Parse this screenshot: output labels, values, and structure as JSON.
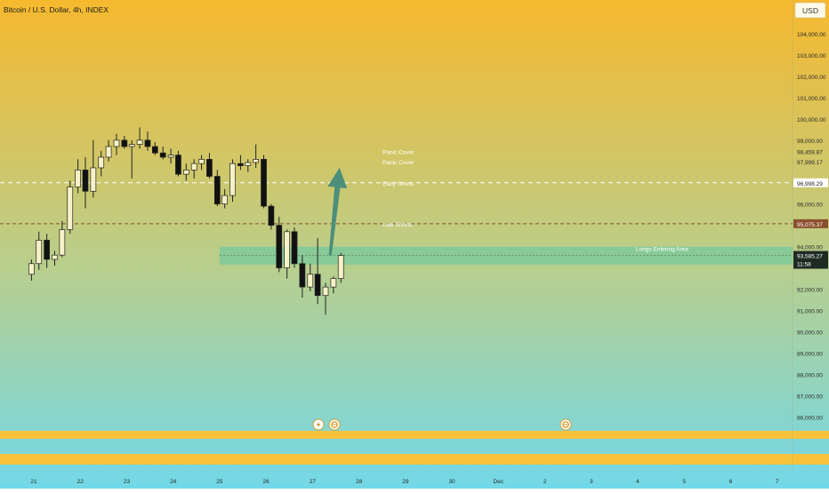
{
  "header": {
    "symbol_title": "Bitcoin / U.S. Dollar, 4h, INDEX",
    "currency_button": "USD"
  },
  "price_axis": {
    "ticks": [
      "104,000.00",
      "103,000.00",
      "102,000.00",
      "101,000.00",
      "100,000.00",
      "99,000.00",
      "96,000.00",
      "94,000.00",
      "92,000.00",
      "91,000.00",
      "90,000.00",
      "89,000.00",
      "88,000.00",
      "87,000.00",
      "86,000.00"
    ],
    "tick_values": [
      104000,
      103000,
      102000,
      101000,
      100000,
      99000,
      96000,
      94000,
      92000,
      91000,
      90000,
      89000,
      88000,
      87000,
      86000
    ]
  },
  "time_axis": {
    "labels": [
      "21",
      "22",
      "23",
      "24",
      "25",
      "26",
      "27",
      "28",
      "29",
      "30",
      "Dec",
      "2",
      "3",
      "4",
      "5",
      "6",
      "7"
    ]
  },
  "price_badges": [
    {
      "label": "98,459.87",
      "value": 98459.87,
      "style": "plain"
    },
    {
      "label": "97,999.17",
      "value": 97999.17,
      "style": "plain"
    },
    {
      "label": "96,998.29",
      "value": 96998.29,
      "style": "white"
    },
    {
      "label": "95,075.37",
      "value": 95075.37,
      "style": "brown"
    },
    {
      "label": "93,585.27",
      "value": 93585.27,
      "style": "dark"
    }
  ],
  "current_price": {
    "price": "93,585.27",
    "countdown": "11:58"
  },
  "levels": [
    {
      "label": "Panic Cover",
      "value": 98459.87,
      "line": "none"
    },
    {
      "label": "Panic Cover",
      "value": 97999.17,
      "line": "none"
    },
    {
      "label": "Early Shorts",
      "value": 96998.29,
      "line": "white-dashed"
    },
    {
      "label": "Late Shorts",
      "value": 95075.37,
      "line": "brown-dashed"
    }
  ],
  "zone": {
    "label": "Longs Entering Area",
    "top": 94000,
    "bottom": 93150,
    "start_day": 25.0
  },
  "arrow": {
    "from_day": 27.38,
    "from_price": 93580,
    "to_day": 27.58,
    "to_price": 97700,
    "color": "#4d8f7a"
  },
  "colors": {
    "bg_top": "#f6b92e",
    "bg_mid": "#b8cf8e",
    "bg_bottom": "#72d8e8",
    "candle_up": "#f7f1c7",
    "candle_down": "#111111",
    "zone": "#7fc99a",
    "brown_line": "#8a4f2c",
    "orange_band": "#f6c23c"
  },
  "chart_data": {
    "type": "candlestick",
    "title": "Bitcoin / U.S. Dollar, 4h, INDEX",
    "x_unit": "day of November",
    "ylim": [
      85200,
      105000
    ],
    "candles": [
      {
        "t": 20.95,
        "o": 92700,
        "h": 93400,
        "l": 92400,
        "c": 93200
      },
      {
        "t": 21.11,
        "o": 93200,
        "h": 94700,
        "l": 92900,
        "c": 94300
      },
      {
        "t": 21.28,
        "o": 94300,
        "h": 94600,
        "l": 93000,
        "c": 93400
      },
      {
        "t": 21.45,
        "o": 93400,
        "h": 93800,
        "l": 93100,
        "c": 93600
      },
      {
        "t": 21.61,
        "o": 93600,
        "h": 95200,
        "l": 93500,
        "c": 94800
      },
      {
        "t": 21.78,
        "o": 94800,
        "h": 97100,
        "l": 94600,
        "c": 96800
      },
      {
        "t": 21.95,
        "o": 96800,
        "h": 98100,
        "l": 96500,
        "c": 97600
      },
      {
        "t": 22.11,
        "o": 97600,
        "h": 98200,
        "l": 95800,
        "c": 96600
      },
      {
        "t": 22.28,
        "o": 96600,
        "h": 99000,
        "l": 96300,
        "c": 97700
      },
      {
        "t": 22.45,
        "o": 97700,
        "h": 98500,
        "l": 97300,
        "c": 98200
      },
      {
        "t": 22.61,
        "o": 98200,
        "h": 99000,
        "l": 98000,
        "c": 98700
      },
      {
        "t": 22.78,
        "o": 98700,
        "h": 99300,
        "l": 98300,
        "c": 99000
      },
      {
        "t": 22.95,
        "o": 99000,
        "h": 99200,
        "l": 98600,
        "c": 98700
      },
      {
        "t": 23.11,
        "o": 98700,
        "h": 99000,
        "l": 97200,
        "c": 98800
      },
      {
        "t": 23.28,
        "o": 98800,
        "h": 99600,
        "l": 98600,
        "c": 99000
      },
      {
        "t": 23.45,
        "o": 99000,
        "h": 99400,
        "l": 98500,
        "c": 98700
      },
      {
        "t": 23.61,
        "o": 98700,
        "h": 98900,
        "l": 98300,
        "c": 98400
      },
      {
        "t": 23.78,
        "o": 98400,
        "h": 98700,
        "l": 98100,
        "c": 98200
      },
      {
        "t": 23.95,
        "o": 98200,
        "h": 98600,
        "l": 97900,
        "c": 98300
      },
      {
        "t": 24.11,
        "o": 98300,
        "h": 98500,
        "l": 97300,
        "c": 97400
      },
      {
        "t": 24.28,
        "o": 97400,
        "h": 97900,
        "l": 97100,
        "c": 97600
      },
      {
        "t": 24.45,
        "o": 97600,
        "h": 98100,
        "l": 97200,
        "c": 97900
      },
      {
        "t": 24.61,
        "o": 97900,
        "h": 98300,
        "l": 97600,
        "c": 98100
      },
      {
        "t": 24.78,
        "o": 98100,
        "h": 98400,
        "l": 97200,
        "c": 97300
      },
      {
        "t": 24.95,
        "o": 97300,
        "h": 97600,
        "l": 95900,
        "c": 96000
      },
      {
        "t": 25.11,
        "o": 96000,
        "h": 96700,
        "l": 95800,
        "c": 96400
      },
      {
        "t": 25.28,
        "o": 96400,
        "h": 98100,
        "l": 96100,
        "c": 97900
      },
      {
        "t": 25.45,
        "o": 97900,
        "h": 98300,
        "l": 97600,
        "c": 97800
      },
      {
        "t": 25.61,
        "o": 97800,
        "h": 98100,
        "l": 97500,
        "c": 97950
      },
      {
        "t": 25.78,
        "o": 97950,
        "h": 98800,
        "l": 97700,
        "c": 98100
      },
      {
        "t": 25.95,
        "o": 98100,
        "h": 98300,
        "l": 95800,
        "c": 95900
      },
      {
        "t": 26.11,
        "o": 95900,
        "h": 96000,
        "l": 94800,
        "c": 95000
      },
      {
        "t": 26.28,
        "o": 95000,
        "h": 95400,
        "l": 92800,
        "c": 93000
      },
      {
        "t": 26.45,
        "o": 93000,
        "h": 94800,
        "l": 92500,
        "c": 94700
      },
      {
        "t": 26.61,
        "o": 94700,
        "h": 94900,
        "l": 93000,
        "c": 93200
      },
      {
        "t": 26.78,
        "o": 93200,
        "h": 93600,
        "l": 91600,
        "c": 92100
      },
      {
        "t": 26.95,
        "o": 92100,
        "h": 93200,
        "l": 91900,
        "c": 92700
      },
      {
        "t": 27.11,
        "o": 92700,
        "h": 94400,
        "l": 91300,
        "c": 91700
      },
      {
        "t": 27.28,
        "o": 91700,
        "h": 92300,
        "l": 90800,
        "c": 92100
      },
      {
        "t": 27.45,
        "o": 92100,
        "h": 92600,
        "l": 91800,
        "c": 92500
      },
      {
        "t": 27.61,
        "o": 92500,
        "h": 93700,
        "l": 92300,
        "c": 93585
      }
    ]
  }
}
